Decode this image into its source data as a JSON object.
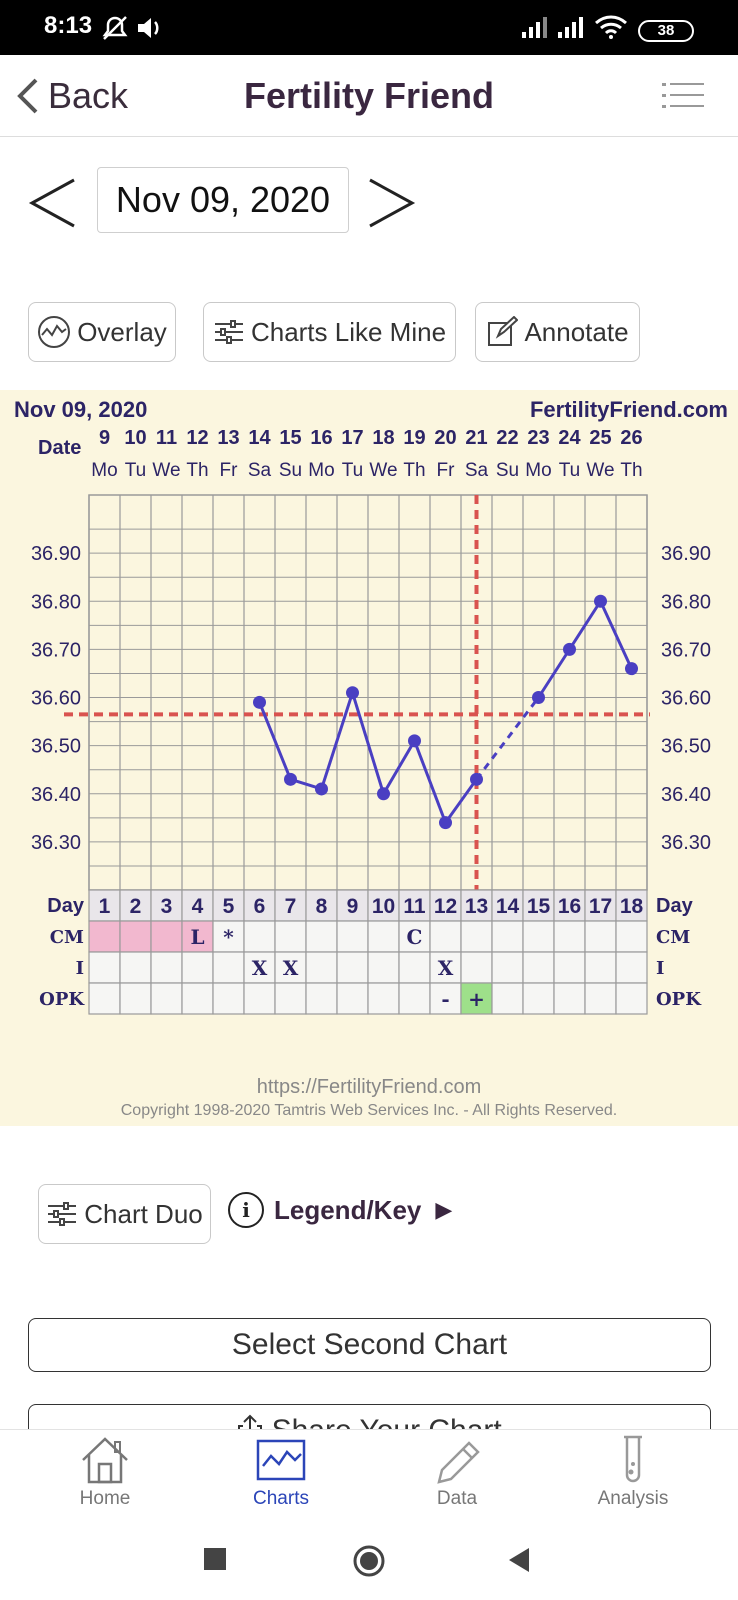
{
  "status_bar": {
    "time": "8:13",
    "battery": "38"
  },
  "app_bar": {
    "back_label": "Back",
    "title": "Fertility Friend"
  },
  "date_nav": {
    "date": "Nov 09, 2020"
  },
  "actions": {
    "overlay": "Overlay",
    "charts_like_mine": "Charts Like Mine",
    "annotate": "Annotate"
  },
  "chart_header": {
    "date": "Nov 09, 2020",
    "site": "FertilityFriend.com",
    "date_label": "Date"
  },
  "chart_data": {
    "type": "line",
    "x_dates": [
      "9",
      "10",
      "11",
      "12",
      "13",
      "14",
      "15",
      "16",
      "17",
      "18",
      "19",
      "20",
      "21",
      "22",
      "23",
      "24",
      "25",
      "26"
    ],
    "x_weekdays": [
      "Mo",
      "Tu",
      "We",
      "Th",
      "Fr",
      "Sa",
      "Su",
      "Mo",
      "Tu",
      "We",
      "Th",
      "Fr",
      "Sa",
      "Su",
      "Mo",
      "Tu",
      "We",
      "Th"
    ],
    "cycle_days": [
      "1",
      "2",
      "3",
      "4",
      "5",
      "6",
      "7",
      "8",
      "9",
      "10",
      "11",
      "12",
      "13",
      "14",
      "15",
      "16",
      "17",
      "18"
    ],
    "y_ticks": [
      "36.90",
      "36.80",
      "36.70",
      "36.60",
      "36.50",
      "36.40",
      "36.30"
    ],
    "ylim": [
      36.2,
      37.0
    ],
    "series": [
      {
        "values": [
          null,
          null,
          null,
          null,
          null,
          36.59,
          36.43,
          36.41,
          36.61,
          36.4,
          36.51,
          36.34,
          36.43,
          null,
          36.6,
          36.7,
          36.8,
          36.66
        ]
      }
    ],
    "coverline": 36.565,
    "ovulation_day_index": 12,
    "colors": {
      "line": "#4a3fc2",
      "marker": "#4a3fc2",
      "coverline": "#d9534f",
      "grid": "#9a9a9a",
      "label": "#2c2466"
    }
  },
  "chart_rows": {
    "day_label": "Day",
    "cm_label": "CM",
    "i_label": "I",
    "opk_label": "OPK",
    "cm": [
      "",
      "",
      "",
      "L",
      "*",
      "",
      "",
      "",
      "",
      "",
      "C",
      "",
      "",
      "",
      "",
      "",
      "",
      ""
    ],
    "cm_pink": [
      true,
      true,
      true,
      true,
      false,
      false,
      false,
      false,
      false,
      false,
      false,
      false,
      false,
      false,
      false,
      false,
      false,
      false
    ],
    "i": [
      "",
      "",
      "",
      "",
      "",
      "X",
      "X",
      "",
      "",
      "",
      "",
      "X",
      "",
      "",
      "",
      "",
      "",
      ""
    ],
    "opk": [
      "",
      "",
      "",
      "",
      "",
      "",
      "",
      "",
      "",
      "",
      "",
      "-",
      "+",
      "",
      "",
      "",
      "",
      ""
    ],
    "opk_green_index": 12
  },
  "chart_footer": {
    "url": "https://FertilityFriend.com",
    "copyright": "Copyright 1998-2020 Tamtris Web Services Inc. - All Rights Reserved."
  },
  "chart_duo": {
    "label": "Chart Duo"
  },
  "legend": {
    "label": "Legend/Key",
    "info_glyph": "i",
    "arrow": "▶"
  },
  "buttons": {
    "select_second": "Select Second Chart",
    "share": "Share Your Chart"
  },
  "bottom_nav": [
    {
      "label": "Home",
      "icon": "house-icon"
    },
    {
      "label": "Charts",
      "icon": "chart-icon",
      "active": true
    },
    {
      "label": "Data",
      "icon": "pencil-icon"
    },
    {
      "label": "Analysis",
      "icon": "test-tube-icon"
    }
  ]
}
